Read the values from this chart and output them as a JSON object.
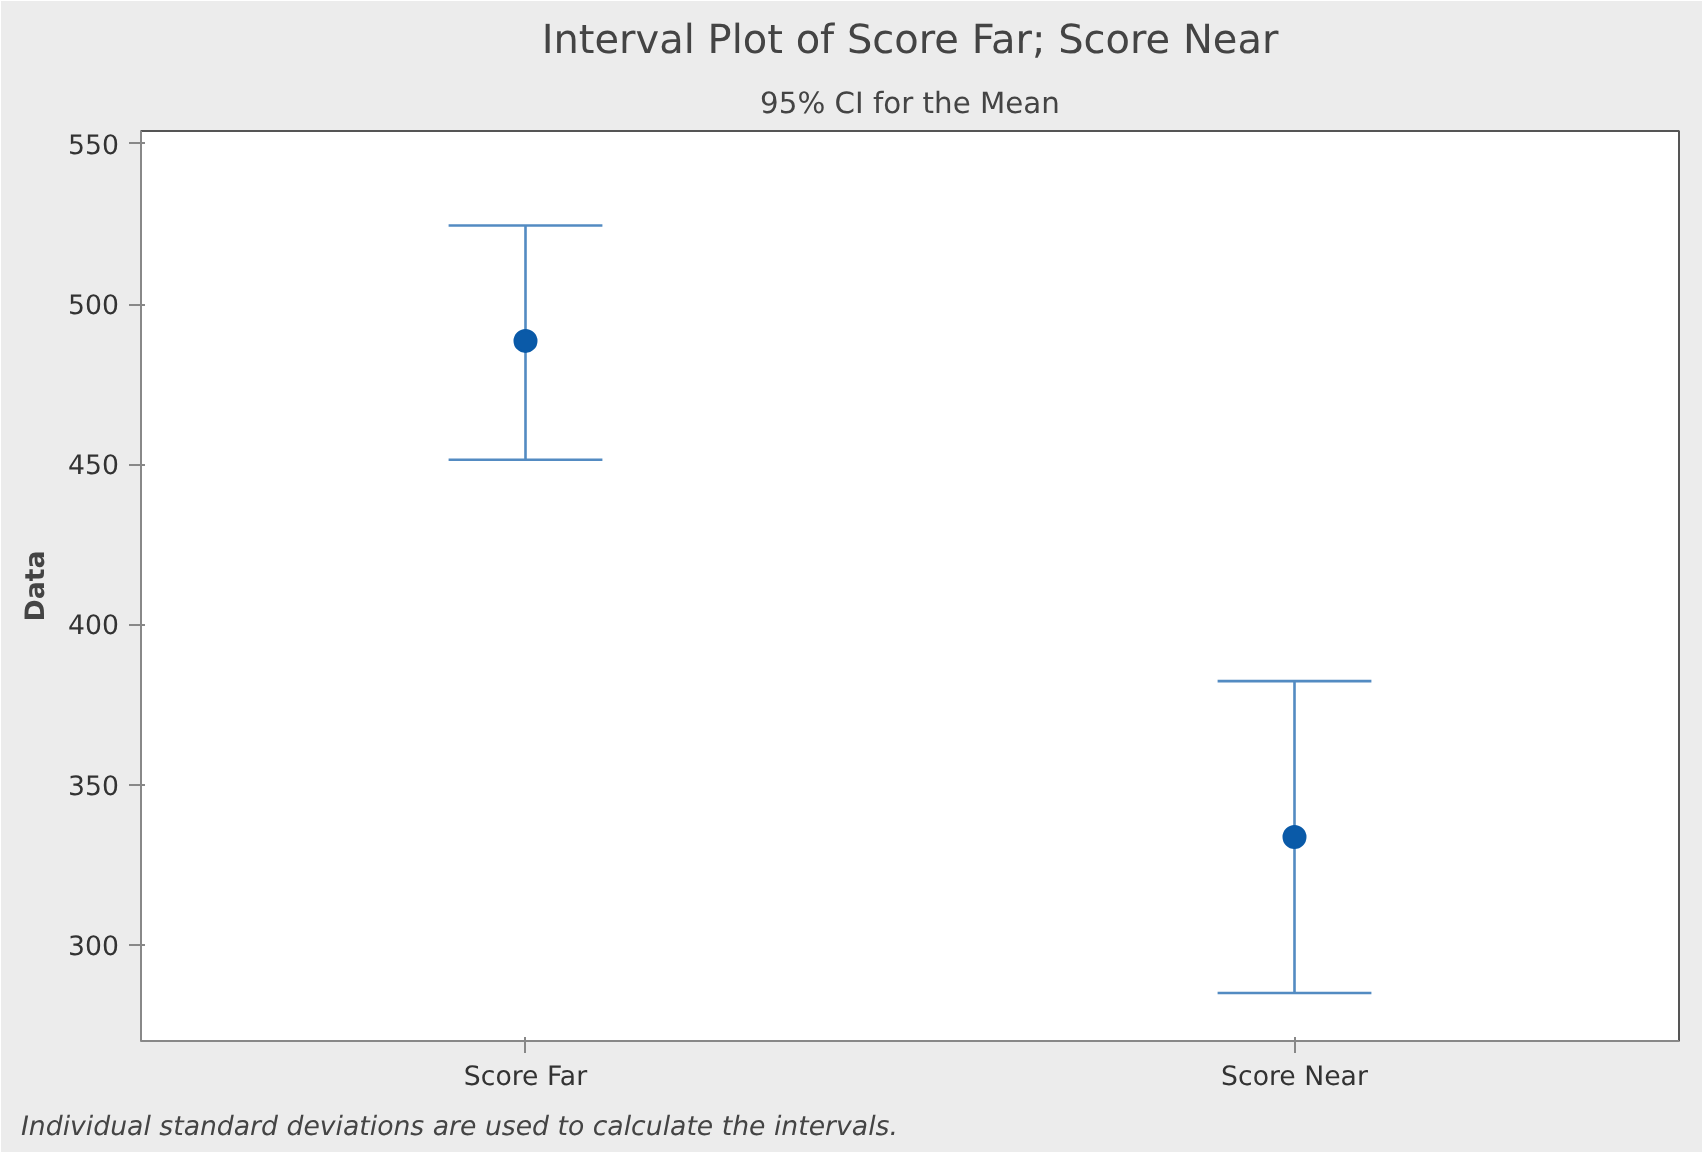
{
  "chart_data": {
    "type": "scatter",
    "title": "Interval Plot of Score Far; Score Near",
    "subtitle": "95% CI for the Mean",
    "ylabel": "Data",
    "categories": [
      "Score Far",
      "Score Near"
    ],
    "values": [
      488.5,
      333.7
    ],
    "errors": [
      [
        451.4,
        524.5
      ],
      [
        285,
        382.3
      ]
    ],
    "color": "#0a5aa8",
    "ylim": [
      270,
      554
    ],
    "yticks": [
      300,
      350,
      400,
      450,
      500,
      550
    ],
    "grid": false,
    "marker": "circle",
    "annotations": [
      "Individual standard deviations are used to calculate the intervals."
    ]
  }
}
